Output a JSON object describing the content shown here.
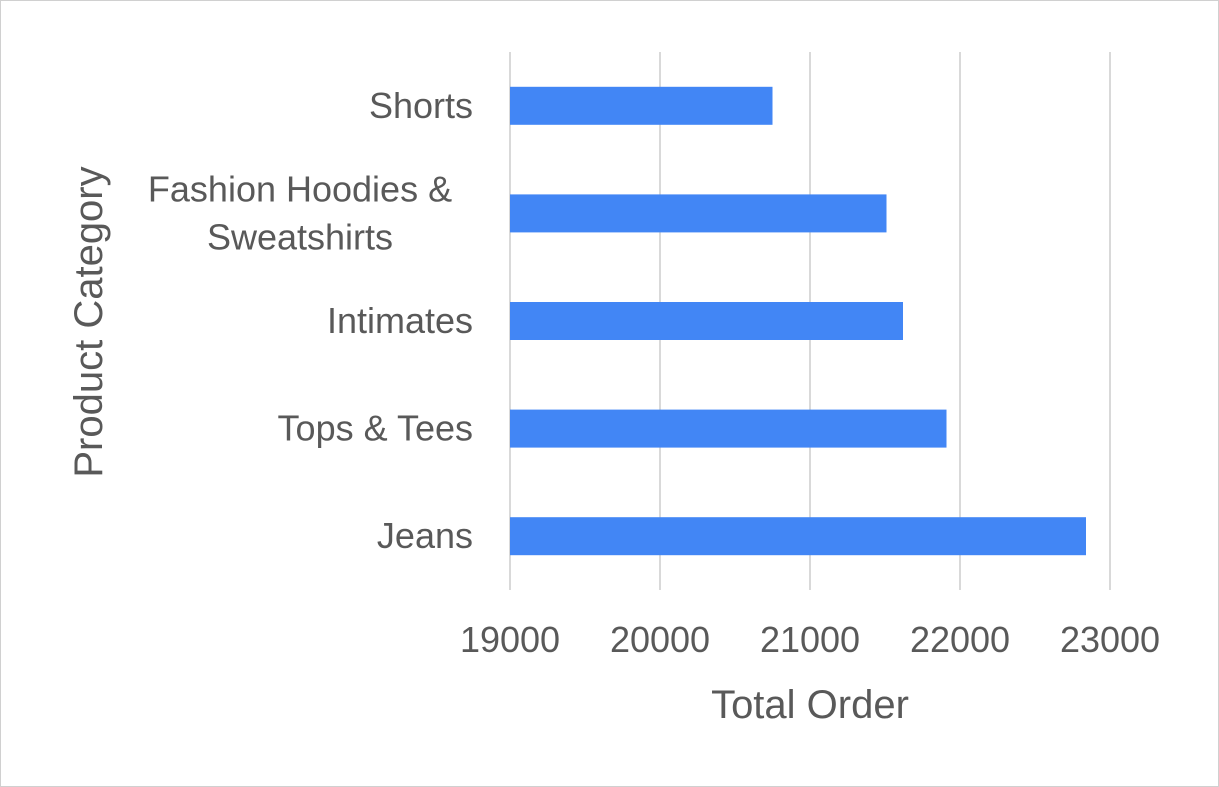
{
  "chart_data": {
    "type": "bar",
    "orientation": "horizontal",
    "categories": [
      "Shorts",
      "Fashion Hoodies & Sweatshirts",
      "Intimates",
      "Tops & Tees",
      "Jeans"
    ],
    "category_lines": [
      [
        "Shorts"
      ],
      [
        "Fashion Hoodies &",
        "Sweatshirts"
      ],
      [
        "Intimates"
      ],
      [
        "Tops & Tees"
      ],
      [
        "Jeans"
      ]
    ],
    "values": [
      20750,
      21510,
      21620,
      21910,
      22840
    ],
    "x_ticks": [
      "19000",
      "20000",
      "21000",
      "22000",
      "23000"
    ],
    "xlim": [
      19000,
      23000
    ],
    "xlabel": "Total Order",
    "ylabel": "Product Category",
    "grid": "vertical",
    "legend": "none",
    "bar_color": "#4286F5",
    "grid_color": "#D9D9D9",
    "text_color": "#595959"
  }
}
